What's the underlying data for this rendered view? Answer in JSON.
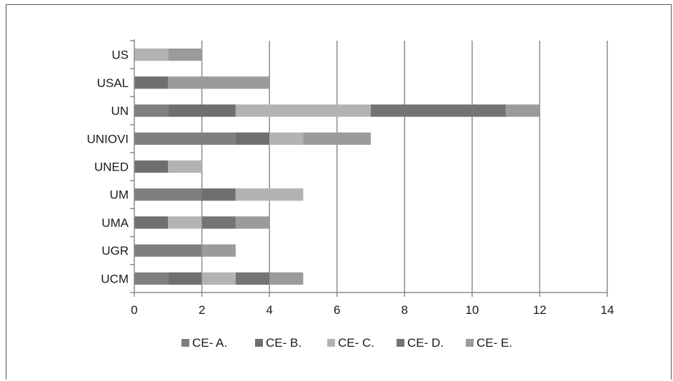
{
  "chart_data": {
    "type": "bar",
    "orientation": "horizontal",
    "stacked": true,
    "title": "",
    "xlabel": "",
    "ylabel": "",
    "categories": [
      "US",
      "USAL",
      "UN",
      "UNIOVI",
      "UNED",
      "UM",
      "UMA",
      "UGR",
      "UCM"
    ],
    "series": [
      {
        "name": "CE- A.",
        "color": "#7f7f7f",
        "values": [
          0,
          0,
          1,
          3,
          0,
          2,
          0,
          2,
          1
        ]
      },
      {
        "name": "CE- B.",
        "color": "#6f6f6f",
        "values": [
          0,
          1,
          2,
          1,
          1,
          1,
          1,
          0,
          1
        ]
      },
      {
        "name": "CE- C.",
        "color": "#b3b3b3",
        "values": [
          1,
          0,
          4,
          1,
          1,
          2,
          1,
          0,
          1
        ]
      },
      {
        "name": "CE- D.",
        "color": "#747474",
        "values": [
          0,
          0,
          4,
          0,
          0,
          0,
          1,
          0,
          1
        ]
      },
      {
        "name": "CE- E.",
        "color": "#9b9b9b",
        "values": [
          1,
          3,
          1,
          2,
          0,
          0,
          1,
          1,
          1
        ]
      }
    ],
    "xlim": [
      0,
      14
    ],
    "xticks": [
      "0",
      "2",
      "4",
      "6",
      "8",
      "10",
      "12",
      "14"
    ],
    "grid": "vertical",
    "legend_position": "bottom"
  }
}
